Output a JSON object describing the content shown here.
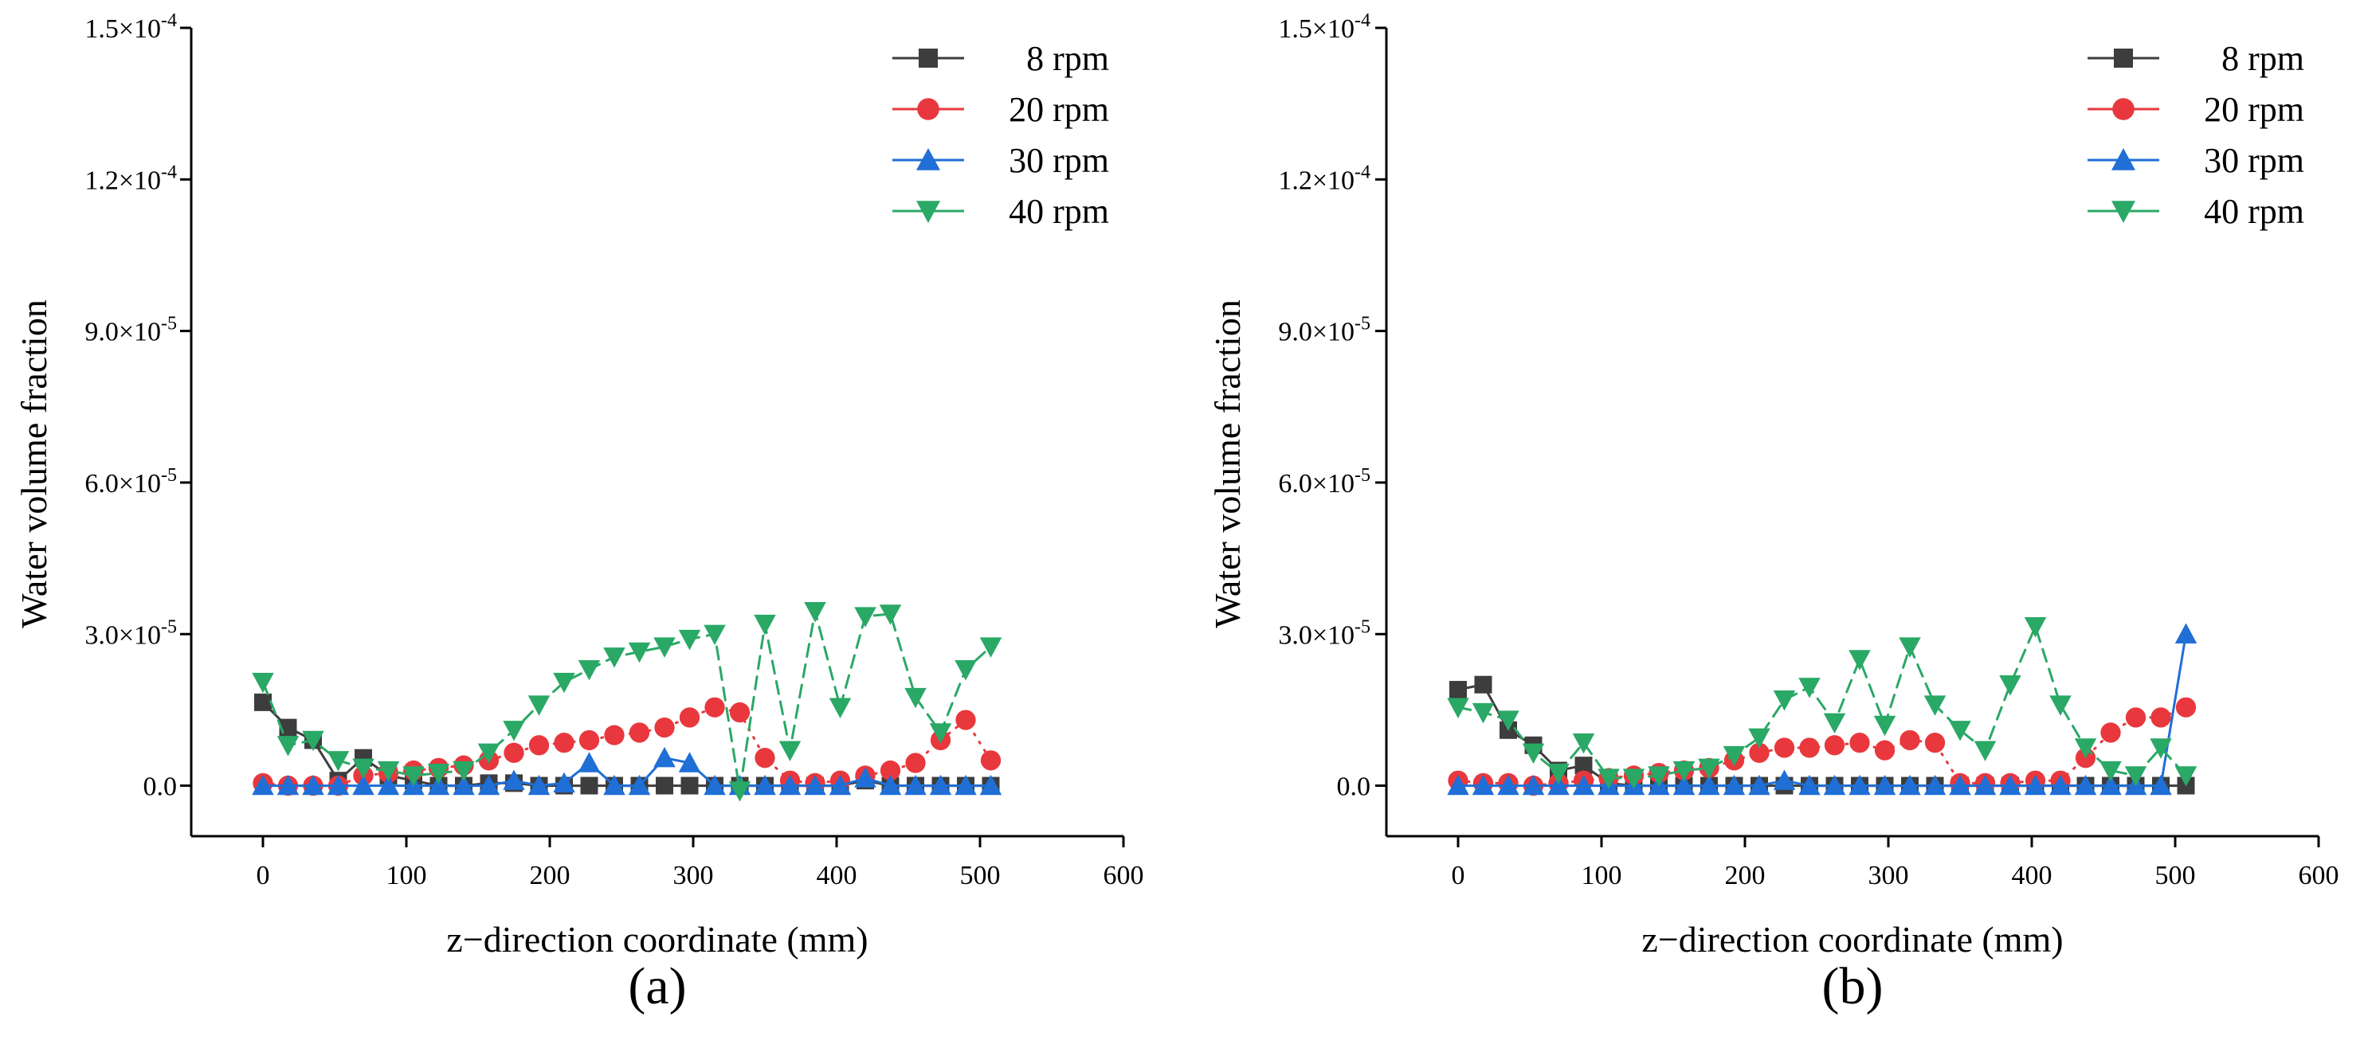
{
  "chart_data": [
    {
      "type": "line",
      "panel_label": "(a)",
      "xlabel": "z−direction coordinate (mm)",
      "ylabel": "Water volume fraction",
      "xlim": [
        -50,
        600
      ],
      "ylim": [
        -1e-05,
        0.00015
      ],
      "xticks": [
        0,
        100,
        200,
        300,
        400,
        500,
        600
      ],
      "xtick_labels": [
        "0",
        "100",
        "200",
        "300",
        "400",
        "500",
        "600"
      ],
      "yticks": [
        0,
        3e-05,
        6e-05,
        9e-05,
        0.00012,
        0.00015
      ],
      "ytick_labels": [
        {
          "mant": "0.0",
          "exp": ""
        },
        {
          "mant": "3.0×10",
          "exp": "-5"
        },
        {
          "mant": "6.0×10",
          "exp": "-5"
        },
        {
          "mant": "9.0×10",
          "exp": "-5"
        },
        {
          "mant": "1.2×10",
          "exp": "-4"
        },
        {
          "mant": "1.5×10",
          "exp": "-4"
        }
      ],
      "legend_position": "top-right",
      "x": [
        0,
        17.5,
        35,
        52.5,
        70,
        87.5,
        105,
        122.5,
        140,
        157.5,
        175,
        192.5,
        210,
        227.5,
        245,
        262.5,
        280,
        297.5,
        315,
        332.5,
        350,
        367.5,
        385,
        402.5,
        420,
        437.5,
        455,
        472.5,
        490,
        507.5
      ],
      "series": [
        {
          "name": "8 rpm",
          "color": "#3d3d3d",
          "marker": "square",
          "dash": "none",
          "values": [
            1.65e-05,
            1.15e-05,
            9e-06,
            1e-06,
            5.5e-06,
            2e-06,
            1e-06,
            0,
            0,
            5e-07,
            5e-07,
            0,
            0,
            0,
            0,
            0,
            0,
            0,
            0,
            0,
            0,
            0,
            0,
            0,
            1e-06,
            0,
            0,
            0,
            0,
            0
          ]
        },
        {
          "name": "20 rpm",
          "color": "#e8383d",
          "marker": "circle",
          "dash": "2,10",
          "values": [
            5e-07,
            0,
            0,
            0,
            2e-06,
            2.5e-06,
            3e-06,
            3.5e-06,
            4e-06,
            5e-06,
            6.5e-06,
            8e-06,
            8.5e-06,
            9e-06,
            1e-05,
            1.05e-05,
            1.15e-05,
            1.35e-05,
            1.55e-05,
            1.45e-05,
            5.5e-06,
            1e-06,
            5e-07,
            1e-06,
            2e-06,
            3e-06,
            4.5e-06,
            9e-06,
            1.3e-05,
            5e-06
          ]
        },
        {
          "name": "30 rpm",
          "color": "#1f6fd6",
          "marker": "triangle-up",
          "dash": "none",
          "values": [
            0,
            0,
            0,
            0,
            0,
            0,
            0,
            0,
            0,
            0,
            1e-06,
            0,
            5e-07,
            4.5e-06,
            0,
            0,
            5.5e-06,
            4.5e-06,
            0,
            0,
            0,
            0,
            0,
            0,
            1.5e-06,
            0,
            0,
            0,
            0,
            0
          ]
        },
        {
          "name": "40 rpm",
          "color": "#2aa866",
          "marker": "triangle-down",
          "dash": "16,10",
          "values": [
            2.05e-05,
            8e-06,
            9e-06,
            5e-06,
            3.5e-06,
            3e-06,
            2e-06,
            2.5e-06,
            3e-06,
            6.5e-06,
            1.1e-05,
            1.6e-05,
            2.05e-05,
            2.3e-05,
            2.55e-05,
            2.65e-05,
            2.75e-05,
            2.9e-05,
            3e-05,
            -1e-06,
            3.2e-05,
            7e-06,
            3.45e-05,
            1.55e-05,
            3.35e-05,
            3.4e-05,
            1.75e-05,
            1.05e-05,
            2.3e-05,
            2.75e-05
          ]
        }
      ]
    },
    {
      "type": "line",
      "panel_label": "(b)",
      "xlabel": "z−direction coordinate (mm)",
      "ylabel": "Water volume fraction",
      "xlim": [
        -50,
        600
      ],
      "ylim": [
        -1e-05,
        0.00015
      ],
      "xticks": [
        0,
        100,
        200,
        300,
        400,
        500,
        600
      ],
      "xtick_labels": [
        "0",
        "100",
        "200",
        "300",
        "400",
        "500",
        "600"
      ],
      "yticks": [
        0,
        3e-05,
        6e-05,
        9e-05,
        0.00012,
        0.00015
      ],
      "ytick_labels": [
        {
          "mant": "0.0",
          "exp": ""
        },
        {
          "mant": "3.0×10",
          "exp": "-5"
        },
        {
          "mant": "6.0×10",
          "exp": "-5"
        },
        {
          "mant": "9.0×10",
          "exp": "-5"
        },
        {
          "mant": "1.2×10",
          "exp": "-4"
        },
        {
          "mant": "1.5×10",
          "exp": "-4"
        }
      ],
      "legend_position": "top-right",
      "x": [
        0,
        17.5,
        35,
        52.5,
        70,
        87.5,
        105,
        122.5,
        140,
        157.5,
        175,
        192.5,
        210,
        227.5,
        245,
        262.5,
        280,
        297.5,
        315,
        332.5,
        350,
        367.5,
        385,
        402.5,
        420,
        437.5,
        455,
        472.5,
        490,
        507.5
      ],
      "series": [
        {
          "name": "8 rpm",
          "color": "#3d3d3d",
          "marker": "square",
          "dash": "none",
          "values": [
            1.9e-05,
            2e-05,
            1.1e-05,
            8e-06,
            3e-06,
            4e-06,
            5e-07,
            0,
            0,
            0,
            0,
            0,
            0,
            0,
            0,
            0,
            0,
            0,
            0,
            0,
            0,
            0,
            0,
            0,
            0,
            0,
            0,
            0,
            0,
            0
          ]
        },
        {
          "name": "20 rpm",
          "color": "#e8383d",
          "marker": "circle",
          "dash": "2,10",
          "values": [
            1e-06,
            5e-07,
            5e-07,
            0,
            5e-07,
            1e-06,
            1.5e-06,
            2e-06,
            2.5e-06,
            3e-06,
            3.5e-06,
            5e-06,
            6.5e-06,
            7.5e-06,
            7.5e-06,
            8e-06,
            8.5e-06,
            7e-06,
            9e-06,
            8.5e-06,
            5e-07,
            5e-07,
            5e-07,
            1e-06,
            1e-06,
            5.5e-06,
            1.05e-05,
            1.35e-05,
            1.35e-05,
            1.55e-05
          ]
        },
        {
          "name": "30 rpm",
          "color": "#1f6fd6",
          "marker": "triangle-up",
          "dash": "none",
          "values": [
            0,
            0,
            0,
            0,
            0,
            0,
            0,
            0,
            0,
            0,
            0,
            0,
            0,
            1e-06,
            0,
            0,
            0,
            0,
            0,
            0,
            0,
            0,
            0,
            0,
            0,
            0,
            0,
            0,
            0,
            3e-05
          ]
        },
        {
          "name": "40 rpm",
          "color": "#2aa866",
          "marker": "triangle-down",
          "dash": "16,10",
          "values": [
            1.55e-05,
            1.45e-05,
            1.3e-05,
            6.5e-06,
            2.5e-06,
            8.5e-06,
            1.5e-06,
            1.5e-06,
            2e-06,
            3e-06,
            3.5e-06,
            6e-06,
            9.5e-06,
            1.7e-05,
            1.95e-05,
            1.25e-05,
            2.5e-05,
            1.2e-05,
            2.75e-05,
            1.6e-05,
            1.1e-05,
            7e-06,
            2e-05,
            3.15e-05,
            1.6e-05,
            7.5e-06,
            3e-06,
            2e-06,
            7.5e-06,
            2e-06
          ]
        }
      ]
    }
  ]
}
